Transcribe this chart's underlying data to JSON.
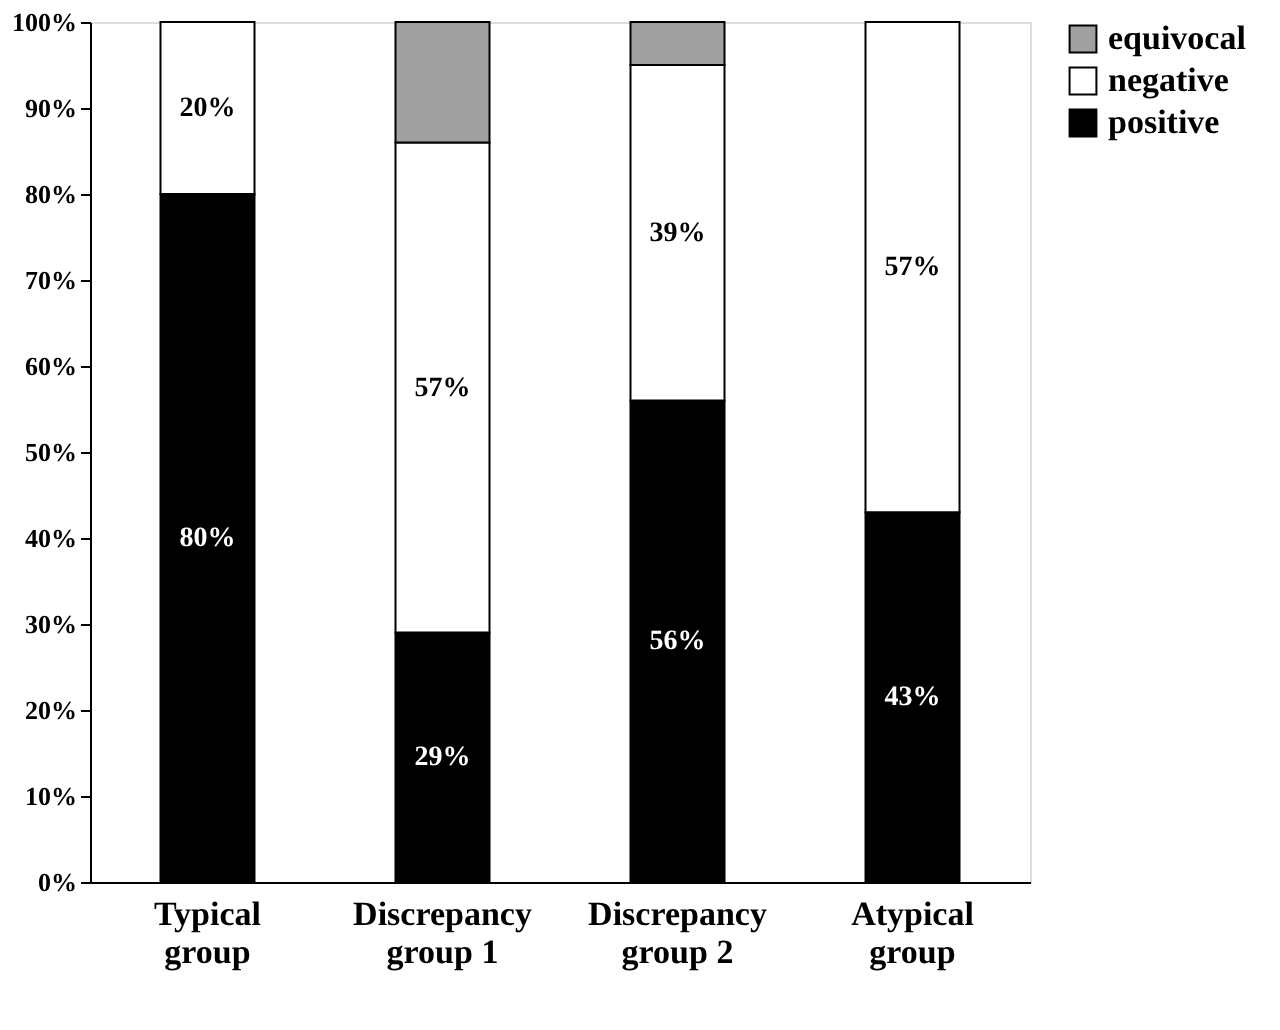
{
  "chart_data": {
    "type": "bar",
    "stacked": true,
    "categories": [
      "Typical\ngroup",
      "Discrepancy\ngroup 1",
      "Discrepancy\ngroup 2",
      "Atypical\ngroup"
    ],
    "series": [
      {
        "name": "positive",
        "color": "#000000",
        "values": [
          80,
          29,
          56,
          43
        ],
        "value_labels": [
          "80%",
          "29%",
          "56%",
          "43%"
        ]
      },
      {
        "name": "negative",
        "color": "#ffffff",
        "values": [
          20,
          57,
          39,
          57
        ],
        "value_labels": [
          "20%",
          "57%",
          "39%",
          "57%"
        ]
      },
      {
        "name": "equivocal",
        "color": "#a0a0a0",
        "values": [
          null,
          14,
          5,
          null
        ]
      }
    ],
    "ylim": [
      0,
      100
    ],
    "yticks": [
      {
        "value": 0,
        "label": "0%"
      },
      {
        "value": 10,
        "label": "10%"
      },
      {
        "value": 20,
        "label": "20%"
      },
      {
        "value": 30,
        "label": "30%"
      },
      {
        "value": 40,
        "label": "40%"
      },
      {
        "value": 50,
        "label": "50%"
      },
      {
        "value": 60,
        "label": "60%"
      },
      {
        "value": 70,
        "label": "70%"
      },
      {
        "value": 80,
        "label": "80%"
      },
      {
        "value": 90,
        "label": "90%"
      },
      {
        "value": 100,
        "label": "100%"
      }
    ],
    "grid": false,
    "legend": "right"
  }
}
